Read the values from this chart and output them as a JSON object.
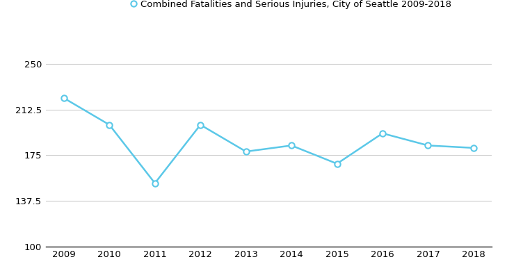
{
  "years": [
    2009,
    2010,
    2011,
    2012,
    2013,
    2014,
    2015,
    2016,
    2017,
    2018
  ],
  "values": [
    222,
    200,
    152,
    200,
    178,
    183,
    168,
    193,
    183,
    181
  ],
  "line_color": "#5bc8e8",
  "marker_style": "o",
  "marker_facecolor": "white",
  "marker_edgecolor": "#5bc8e8",
  "marker_size": 6,
  "line_width": 1.8,
  "legend_label": "Combined Fatalities and Serious Injuries, City of Seattle 2009-2018",
  "ylim": [
    100,
    275
  ],
  "yticks": [
    100,
    137.5,
    175,
    212.5,
    250
  ],
  "ytick_labels": [
    "100",
    "137.5",
    "175",
    "212.5",
    "250"
  ],
  "xlim": [
    2008.6,
    2018.4
  ],
  "xticks": [
    2009,
    2010,
    2011,
    2012,
    2013,
    2014,
    2015,
    2016,
    2017,
    2018
  ],
  "grid_color": "#cccccc",
  "background_color": "#ffffff",
  "tick_fontsize": 9.5,
  "legend_fontsize": 9.5
}
